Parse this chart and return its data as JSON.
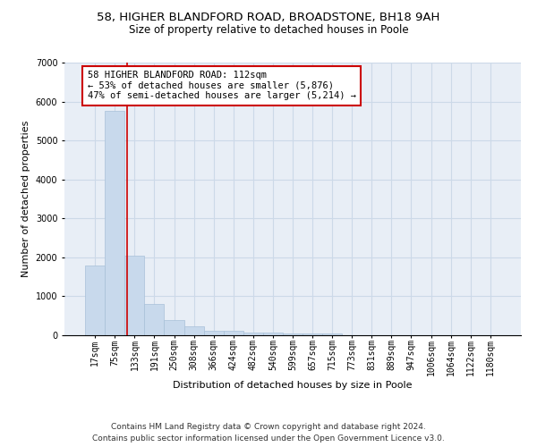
{
  "title1": "58, HIGHER BLANDFORD ROAD, BROADSTONE, BH18 9AH",
  "title2": "Size of property relative to detached houses in Poole",
  "xlabel": "Distribution of detached houses by size in Poole",
  "ylabel": "Number of detached properties",
  "bar_color": "#c8d9ec",
  "bar_edgecolor": "#a8c0d8",
  "grid_color": "#ccd9e8",
  "background_color": "#e8eef6",
  "annotation_text": "58 HIGHER BLANDFORD ROAD: 112sqm\n← 53% of detached houses are smaller (5,876)\n47% of semi-detached houses are larger (5,214) →",
  "vline_color": "#cc0000",
  "categories": [
    "17sqm",
    "75sqm",
    "133sqm",
    "191sqm",
    "250sqm",
    "308sqm",
    "366sqm",
    "424sqm",
    "482sqm",
    "540sqm",
    "599sqm",
    "657sqm",
    "715sqm",
    "773sqm",
    "831sqm",
    "889sqm",
    "947sqm",
    "1006sqm",
    "1064sqm",
    "1122sqm",
    "1180sqm"
  ],
  "values": [
    1780,
    5760,
    2050,
    800,
    380,
    220,
    110,
    110,
    65,
    60,
    55,
    55,
    50,
    0,
    0,
    0,
    0,
    0,
    0,
    0,
    0
  ],
  "ylim": [
    0,
    7000
  ],
  "yticks": [
    0,
    1000,
    2000,
    3000,
    4000,
    5000,
    6000,
    7000
  ],
  "footnote": "Contains HM Land Registry data © Crown copyright and database right 2024.\nContains public sector information licensed under the Open Government Licence v3.0.",
  "title1_fontsize": 9.5,
  "title2_fontsize": 8.5,
  "xlabel_fontsize": 8,
  "ylabel_fontsize": 8,
  "annotation_fontsize": 7.5,
  "footnote_fontsize": 6.5,
  "tick_fontsize": 7
}
